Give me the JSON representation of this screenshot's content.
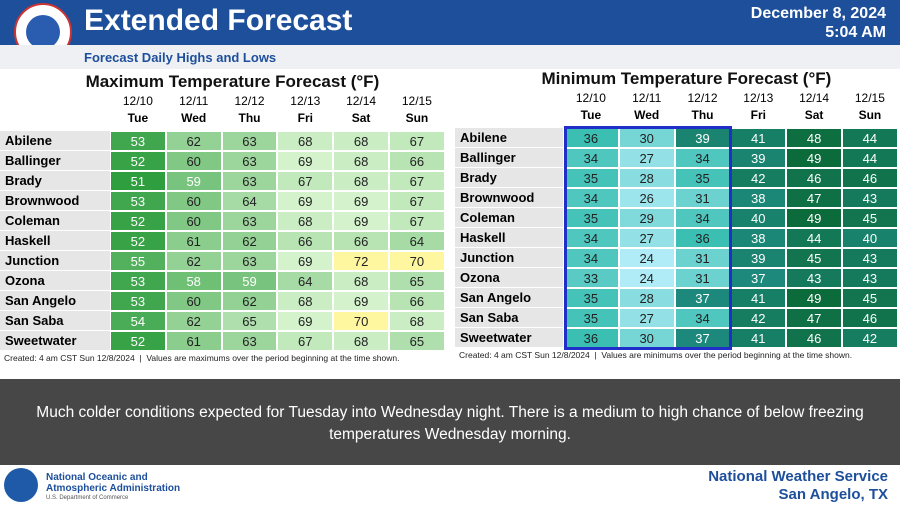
{
  "header": {
    "title": "Extended Forecast",
    "subtitle": "Forecast Daily Highs and Lows",
    "date": "December 8, 2024",
    "time": "5:04 AM"
  },
  "tables": [
    {
      "title": "Maximum Temperature Forecast (°F)",
      "dates": [
        "12/10",
        "12/11",
        "12/12",
        "12/13",
        "12/14",
        "12/15"
      ],
      "days": [
        "Tue",
        "Wed",
        "Thu",
        "Fri",
        "Sat",
        "Sun"
      ],
      "rows": [
        {
          "city": "Abilene",
          "values": [
            53,
            62,
            63,
            68,
            68,
            67
          ]
        },
        {
          "city": "Ballinger",
          "values": [
            52,
            60,
            63,
            69,
            68,
            66
          ]
        },
        {
          "city": "Brady",
          "values": [
            51,
            59,
            63,
            67,
            68,
            67
          ]
        },
        {
          "city": "Brownwood",
          "values": [
            53,
            60,
            64,
            69,
            69,
            67
          ]
        },
        {
          "city": "Coleman",
          "values": [
            52,
            60,
            63,
            68,
            69,
            67
          ]
        },
        {
          "city": "Haskell",
          "values": [
            52,
            61,
            62,
            66,
            66,
            64
          ]
        },
        {
          "city": "Junction",
          "values": [
            55,
            62,
            63,
            69,
            72,
            70
          ]
        },
        {
          "city": "Ozona",
          "values": [
            53,
            58,
            59,
            64,
            68,
            65
          ]
        },
        {
          "city": "San Angelo",
          "values": [
            53,
            60,
            62,
            68,
            69,
            66
          ]
        },
        {
          "city": "San Saba",
          "values": [
            54,
            62,
            65,
            69,
            70,
            68
          ]
        },
        {
          "city": "Sweetwater",
          "values": [
            52,
            61,
            63,
            67,
            68,
            65
          ]
        }
      ],
      "footnote": "Created: 4 am CST Sun 12/8/2024  |  Values are maximums over the period beginning at the time shown."
    },
    {
      "title": "Minimum Temperature Forecast (°F)",
      "dates": [
        "12/10",
        "12/11",
        "12/12",
        "12/13",
        "12/14",
        "12/15"
      ],
      "days": [
        "Tue",
        "Wed",
        "Thu",
        "Fri",
        "Sat",
        "Sun"
      ],
      "rows": [
        {
          "city": "Abilene",
          "values": [
            36,
            30,
            39,
            41,
            48,
            44
          ]
        },
        {
          "city": "Ballinger",
          "values": [
            34,
            27,
            34,
            39,
            49,
            44
          ]
        },
        {
          "city": "Brady",
          "values": [
            35,
            28,
            35,
            42,
            46,
            46
          ]
        },
        {
          "city": "Brownwood",
          "values": [
            34,
            26,
            31,
            38,
            47,
            43
          ]
        },
        {
          "city": "Coleman",
          "values": [
            35,
            29,
            34,
            40,
            49,
            45
          ]
        },
        {
          "city": "Haskell",
          "values": [
            34,
            27,
            36,
            38,
            44,
            40
          ]
        },
        {
          "city": "Junction",
          "values": [
            34,
            24,
            31,
            39,
            45,
            43
          ]
        },
        {
          "city": "Ozona",
          "values": [
            33,
            24,
            31,
            37,
            43,
            43
          ]
        },
        {
          "city": "San Angelo",
          "values": [
            35,
            28,
            37,
            41,
            49,
            45
          ]
        },
        {
          "city": "San Saba",
          "values": [
            35,
            27,
            34,
            42,
            47,
            46
          ]
        },
        {
          "city": "Sweetwater",
          "values": [
            36,
            30,
            37,
            41,
            46,
            42
          ]
        }
      ],
      "footnote": "Created: 4 am CST Sun 12/8/2024  |  Values are minimums over the period beginning at the time shown."
    }
  ],
  "message": "Much colder conditions expected for Tuesday into Wednesday night.  There is a medium to high chance of below freezing temperatures Wednesday morning.",
  "footer": {
    "agency_line1": "National Oceanic and",
    "agency_line2": "Atmospheric Administration",
    "department": "U.S. Department of Commerce",
    "office_line1": "National Weather Service",
    "office_line2": "San Angelo, TX"
  }
}
